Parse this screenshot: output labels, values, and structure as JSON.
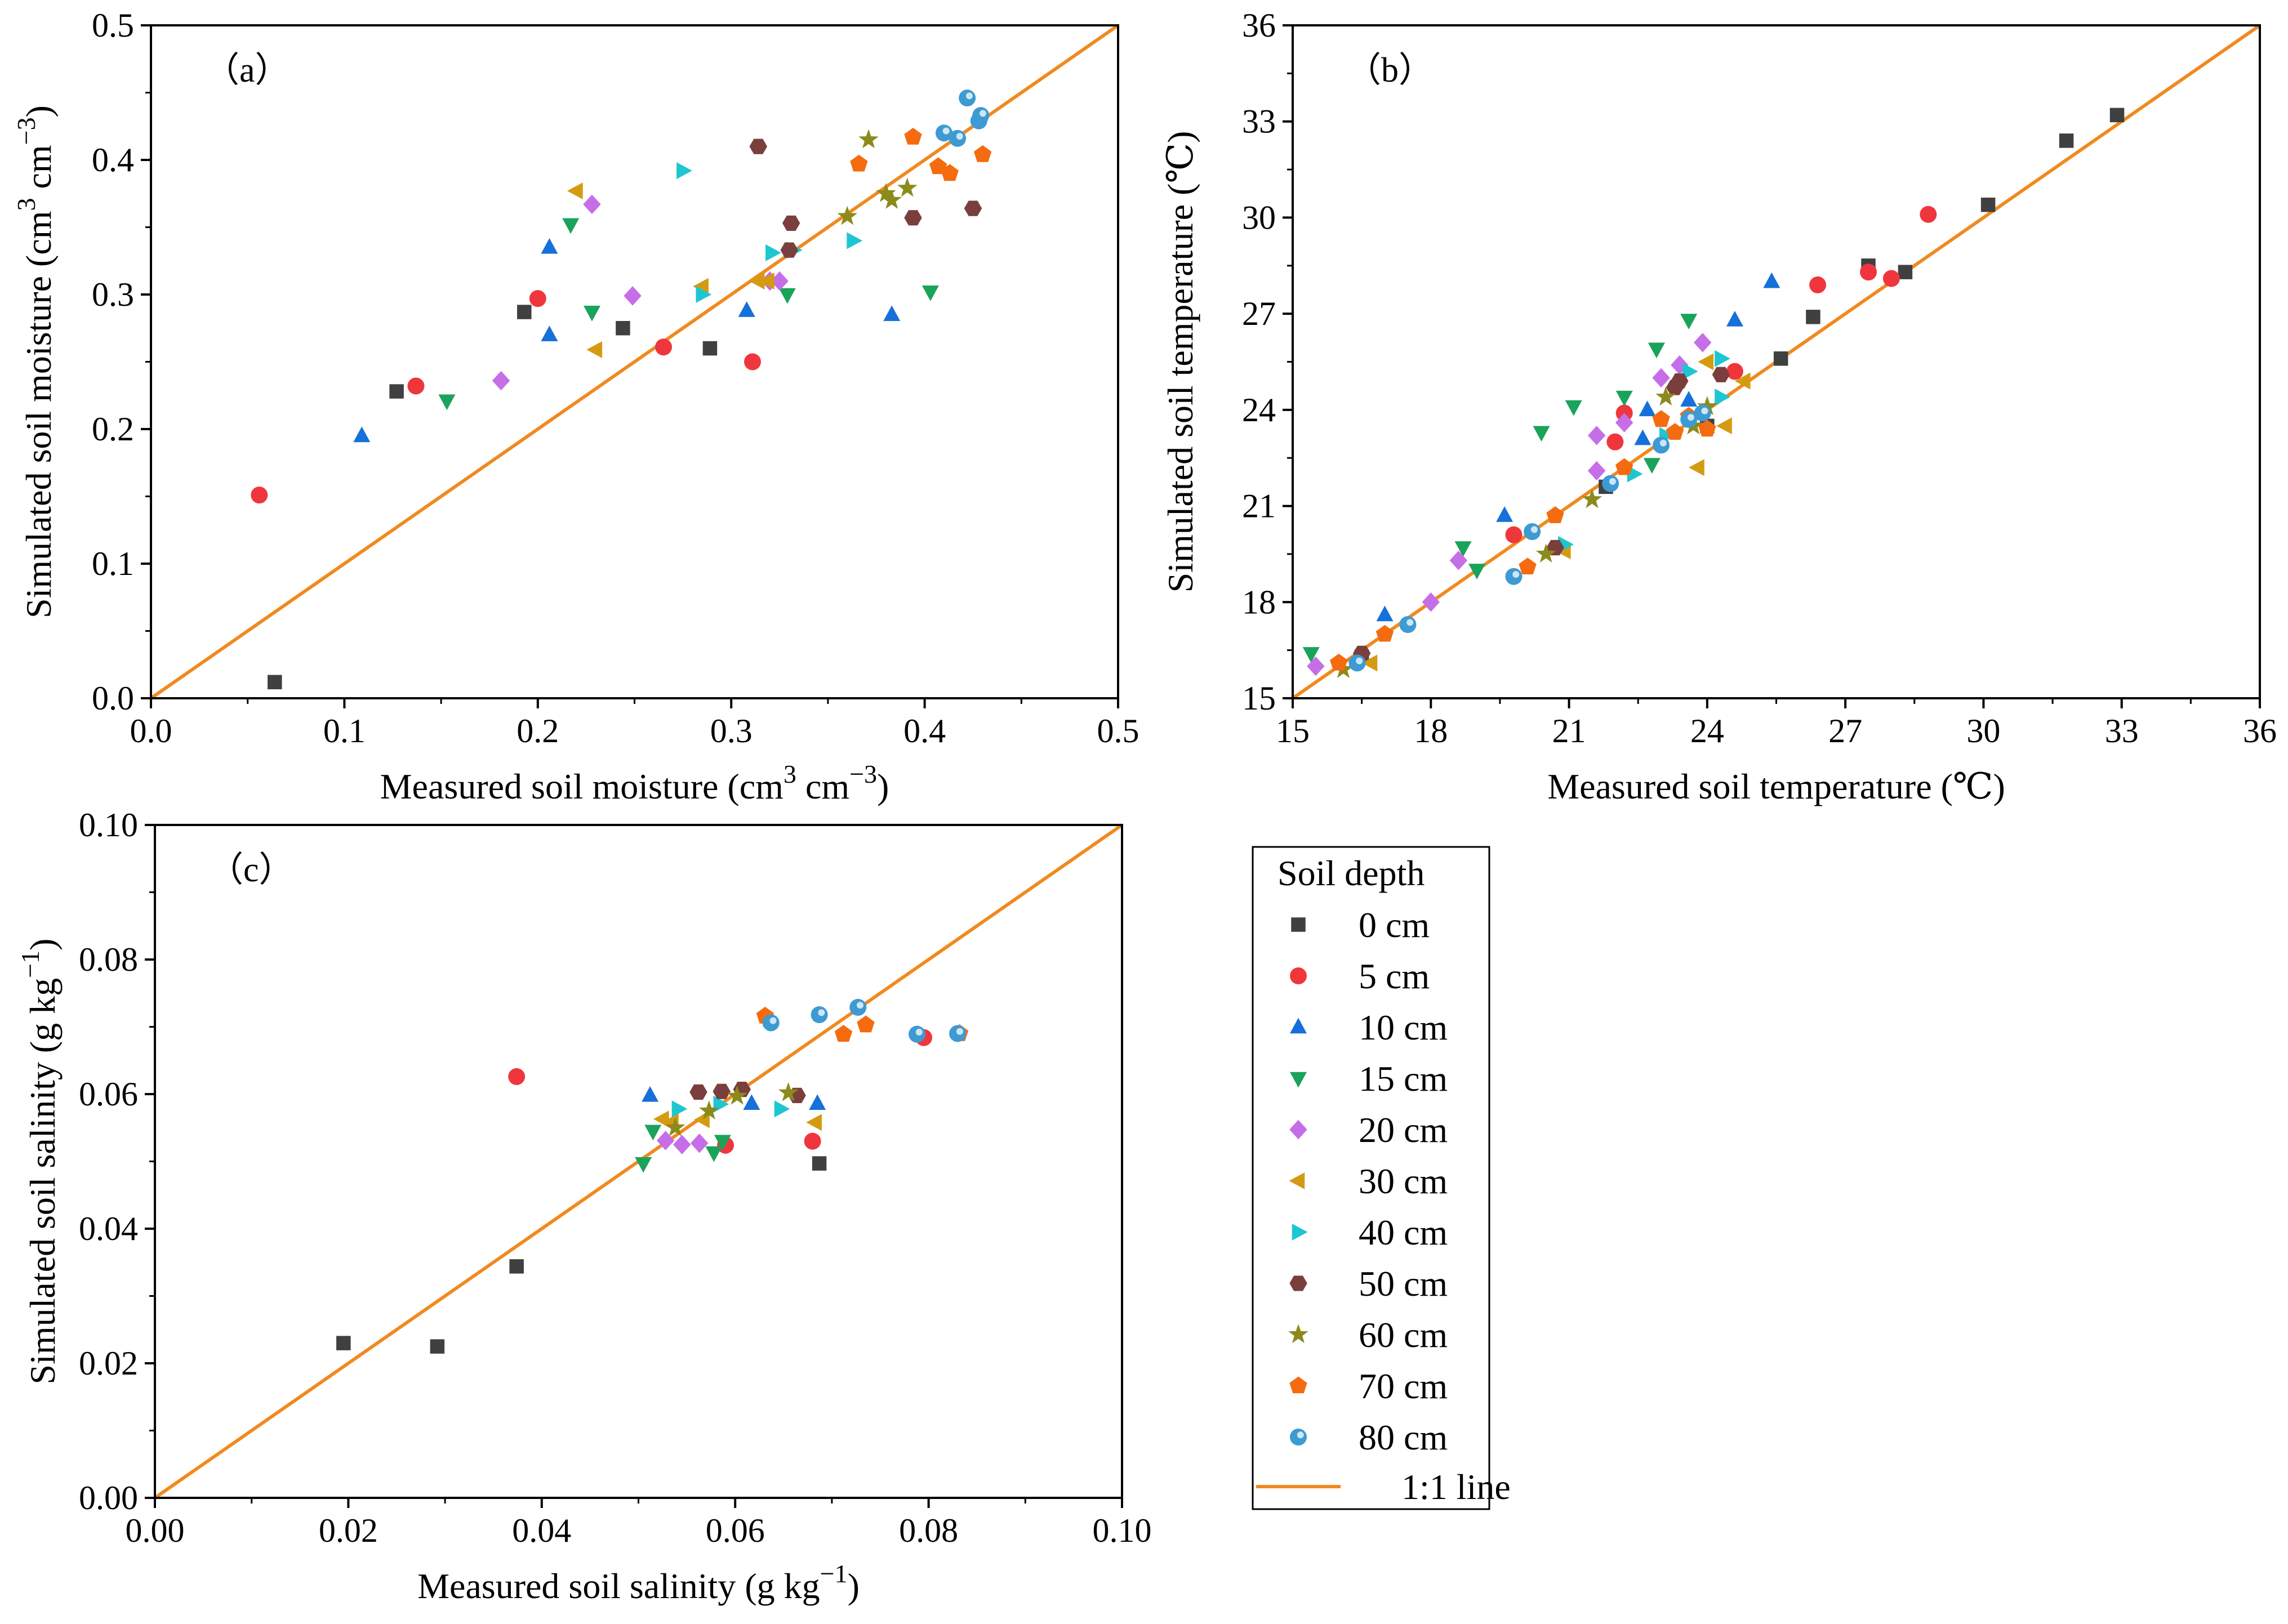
{
  "series_styles": [
    {
      "key": "0cm",
      "name": "0 cm",
      "color": "#404040",
      "marker": "square"
    },
    {
      "key": "5cm",
      "name": "5 cm",
      "color": "#f0363d",
      "marker": "circle"
    },
    {
      "key": "10cm",
      "name": "10 cm",
      "color": "#1670d9",
      "marker": "triangle-up"
    },
    {
      "key": "15cm",
      "name": "15 cm",
      "color": "#1aa35a",
      "marker": "triangle-down"
    },
    {
      "key": "20cm",
      "name": "20 cm",
      "color": "#c66ee8",
      "marker": "diamond"
    },
    {
      "key": "30cm",
      "name": "30 cm",
      "color": "#d49b12",
      "marker": "triangle-left"
    },
    {
      "key": "40cm",
      "name": "40 cm",
      "color": "#1ec6d2",
      "marker": "triangle-right"
    },
    {
      "key": "50cm",
      "name": "50 cm",
      "color": "#7a3f3d",
      "marker": "hexagon"
    },
    {
      "key": "60cm",
      "name": "60 cm",
      "color": "#8c8a1a",
      "marker": "star"
    },
    {
      "key": "70cm",
      "name": "70 cm",
      "color": "#f56b0f",
      "marker": "pentagon"
    },
    {
      "key": "80cm",
      "name": "80 cm",
      "color": "#3d9ad3",
      "marker": "sphere"
    }
  ],
  "line_color": "#f08a1f",
  "legend": {
    "title": "Soil depth",
    "entries": [
      "0 cm",
      "5 cm",
      "10 cm",
      "15 cm",
      "20 cm",
      "30 cm",
      "40 cm",
      "50 cm",
      "60 cm",
      "70 cm",
      "80 cm"
    ],
    "line_label": "1:1 line"
  },
  "chart_data": [
    {
      "type": "scatter",
      "panel_label": "（a）",
      "xlabel": "Measured soil moisture (cm",
      "ylabel": "Simulated soil moisture (cm",
      "xlim": [
        0,
        0.5
      ],
      "ylim": [
        0,
        0.5
      ],
      "ticks": [
        0.0,
        0.1,
        0.2,
        0.3,
        0.4,
        0.5
      ],
      "tick_labels": [
        "0.0",
        "0.1",
        "0.2",
        "0.3",
        "0.4",
        "0.5"
      ],
      "one_to_one": [
        0,
        0.5
      ],
      "series": [
        {
          "name": "0 cm",
          "values": [
            [
              0.064,
              0.012
            ],
            [
              0.127,
              0.228
            ],
            [
              0.193,
              0.287
            ],
            [
              0.244,
              0.275
            ],
            [
              0.289,
              0.26
            ]
          ]
        },
        {
          "name": "5 cm",
          "values": [
            [
              0.056,
              0.151
            ],
            [
              0.137,
              0.232
            ],
            [
              0.2,
              0.297
            ],
            [
              0.265,
              0.261
            ],
            [
              0.311,
              0.25
            ]
          ]
        },
        {
          "name": "10 cm",
          "values": [
            [
              0.109,
              0.195
            ],
            [
              0.206,
              0.27
            ],
            [
              0.206,
              0.335
            ],
            [
              0.308,
              0.288
            ],
            [
              0.383,
              0.285
            ]
          ]
        },
        {
          "name": "15 cm",
          "values": [
            [
              0.153,
              0.221
            ],
            [
              0.217,
              0.352
            ],
            [
              0.228,
              0.287
            ],
            [
              0.329,
              0.3
            ],
            [
              0.403,
              0.302
            ]
          ]
        },
        {
          "name": "20 cm",
          "values": [
            [
              0.181,
              0.236
            ],
            [
              0.228,
              0.367
            ],
            [
              0.249,
              0.299
            ],
            [
              0.32,
              0.31
            ],
            [
              0.325,
              0.31
            ]
          ]
        },
        {
          "name": "30 cm",
          "values": [
            [
              0.22,
              0.377
            ],
            [
              0.23,
              0.259
            ],
            [
              0.285,
              0.306
            ],
            [
              0.314,
              0.31
            ],
            [
              0.319,
              0.31
            ]
          ]
        },
        {
          "name": "40 cm",
          "values": [
            [
              0.275,
              0.392
            ],
            [
              0.285,
              0.3
            ],
            [
              0.321,
              0.331
            ],
            [
              0.332,
              0.333
            ],
            [
              0.363,
              0.34
            ]
          ]
        },
        {
          "name": "50 cm",
          "values": [
            [
              0.314,
              0.41
            ],
            [
              0.331,
              0.353
            ],
            [
              0.33,
              0.333
            ],
            [
              0.394,
              0.357
            ],
            [
              0.425,
              0.364
            ]
          ]
        },
        {
          "name": "60 cm",
          "values": [
            [
              0.371,
              0.415
            ],
            [
              0.36,
              0.358
            ],
            [
              0.38,
              0.375
            ],
            [
              0.383,
              0.37
            ],
            [
              0.391,
              0.379
            ]
          ]
        },
        {
          "name": "70 cm",
          "values": [
            [
              0.366,
              0.397
            ],
            [
              0.394,
              0.417
            ],
            [
              0.407,
              0.395
            ],
            [
              0.413,
              0.39
            ],
            [
              0.43,
              0.404
            ]
          ]
        },
        {
          "name": "80 cm",
          "values": [
            [
              0.41,
              0.42
            ],
            [
              0.417,
              0.416
            ],
            [
              0.422,
              0.446
            ],
            [
              0.428,
              0.429
            ],
            [
              0.429,
              0.433
            ]
          ]
        }
      ]
    },
    {
      "type": "scatter",
      "panel_label": "（b）",
      "xlabel": "Measured soil temperature (℃)",
      "ylabel": "Simulated soil temperature (℃)",
      "xlim": [
        15,
        36
      ],
      "ylim": [
        15,
        36
      ],
      "ticks": [
        15,
        18,
        21,
        24,
        27,
        30,
        33,
        36
      ],
      "tick_labels": [
        "15",
        "18",
        "21",
        "24",
        "27",
        "30",
        "33",
        "36"
      ],
      "one_to_one": [
        15,
        36
      ],
      "series": [
        {
          "name": "0 cm",
          "values": [
            [
              16.5,
              16.3
            ],
            [
              21.8,
              21.6
            ],
            [
              24.0,
              23.5
            ],
            [
              25.6,
              25.6
            ],
            [
              26.3,
              26.9
            ],
            [
              27.5,
              28.5
            ],
            [
              28.3,
              28.3
            ],
            [
              30.1,
              30.4
            ],
            [
              31.8,
              32.4
            ],
            [
              32.9,
              33.2
            ]
          ]
        },
        {
          "name": "5 cm",
          "values": [
            [
              19.8,
              20.1
            ],
            [
              22.0,
              23.0
            ],
            [
              22.2,
              23.9
            ],
            [
              24.6,
              25.2
            ],
            [
              26.4,
              27.9
            ],
            [
              27.5,
              28.3
            ],
            [
              28.0,
              28.1
            ],
            [
              28.8,
              30.1
            ]
          ]
        },
        {
          "name": "10 cm",
          "values": [
            [
              17.0,
              17.6
            ],
            [
              19.6,
              20.7
            ],
            [
              22.6,
              23.1
            ],
            [
              22.7,
              24.0
            ],
            [
              23.6,
              24.3
            ],
            [
              24.6,
              26.8
            ],
            [
              25.4,
              28.0
            ]
          ]
        },
        {
          "name": "15 cm",
          "values": [
            [
              15.4,
              16.4
            ],
            [
              18.7,
              19.7
            ],
            [
              19.0,
              19.0
            ],
            [
              20.4,
              23.3
            ],
            [
              21.1,
              24.1
            ],
            [
              22.2,
              24.4
            ],
            [
              22.8,
              22.3
            ],
            [
              22.9,
              25.9
            ],
            [
              23.6,
              26.8
            ]
          ]
        },
        {
          "name": "20 cm",
          "values": [
            [
              15.5,
              16.0
            ],
            [
              18.6,
              19.3
            ],
            [
              18.0,
              18.0
            ],
            [
              21.6,
              22.1
            ],
            [
              21.6,
              23.2
            ],
            [
              22.2,
              23.6
            ],
            [
              23.0,
              25.0
            ],
            [
              23.4,
              25.4
            ],
            [
              23.9,
              26.1
            ]
          ]
        },
        {
          "name": "30 cm",
          "values": [
            [
              16.7,
              16.1
            ],
            [
              20.9,
              19.6
            ],
            [
              23.8,
              22.2
            ],
            [
              24.4,
              23.5
            ],
            [
              24.8,
              24.9
            ],
            [
              24.0,
              25.5
            ]
          ]
        },
        {
          "name": "40 cm",
          "values": [
            [
              20.9,
              19.8
            ],
            [
              22.4,
              22.0
            ],
            [
              23.1,
              23.2
            ],
            [
              23.6,
              25.2
            ],
            [
              24.3,
              24.4
            ],
            [
              24.3,
              25.6
            ]
          ]
        },
        {
          "name": "50 cm",
          "values": [
            [
              16.5,
              16.4
            ],
            [
              20.7,
              19.7
            ],
            [
              23.3,
              24.7
            ],
            [
              23.4,
              24.9
            ],
            [
              24.3,
              25.1
            ]
          ]
        },
        {
          "name": "60 cm",
          "values": [
            [
              16.1,
              15.9
            ],
            [
              20.5,
              19.5
            ],
            [
              21.5,
              21.2
            ],
            [
              23.1,
              24.4
            ],
            [
              23.7,
              23.5
            ],
            [
              24.0,
              24.1
            ]
          ]
        },
        {
          "name": "70 cm",
          "values": [
            [
              16.0,
              16.1
            ],
            [
              17.0,
              17.0
            ],
            [
              20.1,
              19.1
            ],
            [
              20.7,
              20.7
            ],
            [
              22.2,
              22.2
            ],
            [
              23.0,
              23.7
            ],
            [
              23.3,
              23.3
            ],
            [
              23.6,
              23.8
            ],
            [
              24.0,
              23.4
            ]
          ]
        },
        {
          "name": "80 cm",
          "values": [
            [
              16.4,
              16.1
            ],
            [
              17.5,
              17.3
            ],
            [
              19.8,
              18.8
            ],
            [
              20.2,
              20.2
            ],
            [
              21.9,
              21.7
            ],
            [
              23.0,
              22.9
            ],
            [
              23.6,
              23.7
            ],
            [
              23.9,
              23.9
            ]
          ]
        }
      ]
    },
    {
      "type": "scatter",
      "panel_label": "（c）",
      "xlabel": "Measured soil salinity (g kg",
      "ylabel": "Simulated soil salinity (g kg",
      "xlim": [
        0,
        0.1
      ],
      "ylim": [
        0,
        0.1
      ],
      "ticks": [
        0.0,
        0.02,
        0.04,
        0.06,
        0.08,
        0.1
      ],
      "tick_labels": [
        "0.00",
        "0.02",
        "0.04",
        "0.06",
        "0.08",
        "0.10"
      ],
      "one_to_one": [
        0,
        0.1
      ],
      "series": [
        {
          "name": "0 cm",
          "values": [
            [
              0.0195,
              0.023
            ],
            [
              0.0292,
              0.0225
            ],
            [
              0.0374,
              0.0344
            ],
            [
              0.0687,
              0.0497
            ]
          ]
        },
        {
          "name": "5 cm",
          "values": [
            [
              0.0374,
              0.0626
            ],
            [
              0.059,
              0.0524
            ],
            [
              0.068,
              0.053
            ],
            [
              0.0795,
              0.0684
            ]
          ]
        },
        {
          "name": "10 cm",
          "values": [
            [
              0.0512,
              0.0598
            ],
            [
              0.0617,
              0.0586
            ],
            [
              0.0685,
              0.0586
            ]
          ]
        },
        {
          "name": "15 cm",
          "values": [
            [
              0.0505,
              0.0497
            ],
            [
              0.0515,
              0.0545
            ],
            [
              0.0578,
              0.0513
            ],
            [
              0.0587,
              0.053
            ]
          ]
        },
        {
          "name": "20 cm",
          "values": [
            [
              0.0528,
              0.0531
            ],
            [
              0.0545,
              0.0525
            ],
            [
              0.0563,
              0.0527
            ]
          ]
        },
        {
          "name": "30 cm",
          "values": [
            [
              0.0525,
              0.0563
            ],
            [
              0.0535,
              0.0559
            ],
            [
              0.0567,
              0.0562
            ],
            [
              0.0683,
              0.0558
            ]
          ]
        },
        {
          "name": "40 cm",
          "values": [
            [
              0.0541,
              0.0578
            ],
            [
              0.0584,
              0.0585
            ],
            [
              0.0647,
              0.0578
            ]
          ]
        },
        {
          "name": "50 cm",
          "values": [
            [
              0.0562,
              0.0603
            ],
            [
              0.0586,
              0.0604
            ],
            [
              0.0607,
              0.0607
            ],
            [
              0.0664,
              0.0598
            ]
          ]
        },
        {
          "name": "60 cm",
          "values": [
            [
              0.0538,
              0.055
            ],
            [
              0.0573,
              0.0575
            ],
            [
              0.0602,
              0.0597
            ],
            [
              0.0655,
              0.0602
            ]
          ]
        },
        {
          "name": "70 cm",
          "values": [
            [
              0.0631,
              0.0716
            ],
            [
              0.0712,
              0.0689
            ],
            [
              0.0735,
              0.0703
            ],
            [
              0.0832,
              0.069
            ]
          ]
        },
        {
          "name": "80 cm",
          "values": [
            [
              0.0637,
              0.0706
            ],
            [
              0.0687,
              0.0718
            ],
            [
              0.0727,
              0.0729
            ],
            [
              0.0788,
              0.0689
            ],
            [
              0.083,
              0.069
            ]
          ]
        }
      ]
    }
  ]
}
